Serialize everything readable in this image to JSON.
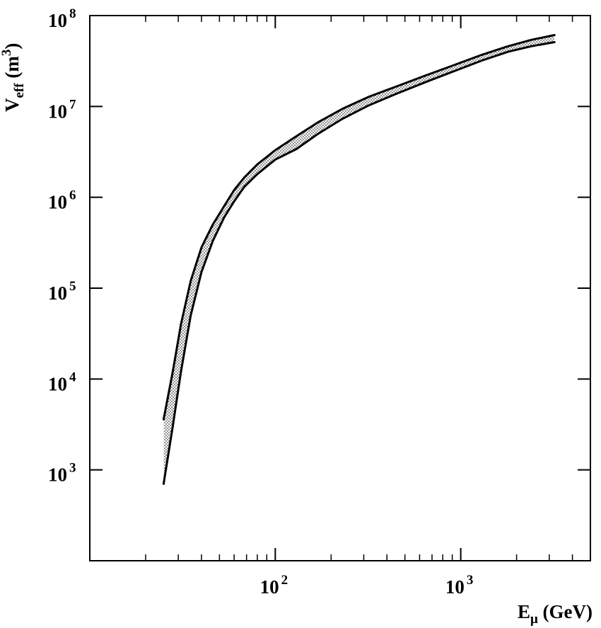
{
  "chart_data": {
    "type": "area",
    "title": "",
    "xlabel": {
      "base": "E",
      "sub": "μ",
      "rest": " (GeV)"
    },
    "ylabel": {
      "base": "V",
      "sub": "eff",
      "rest": " (m",
      "sup": "3",
      "close": ")"
    },
    "xscale": "log",
    "yscale": "log",
    "xlim": [
      10,
      5000
    ],
    "ylim": [
      100,
      100000000
    ],
    "grid": false,
    "legend": "none",
    "xticks_major": [
      {
        "value": 100,
        "base": "10",
        "exp": "2"
      },
      {
        "value": 1000,
        "base": "10",
        "exp": "3"
      }
    ],
    "yticks_major": [
      {
        "value": 1000,
        "base": "10",
        "exp": "3"
      },
      {
        "value": 10000,
        "base": "10",
        "exp": "4"
      },
      {
        "value": 100000,
        "base": "10",
        "exp": "5"
      },
      {
        "value": 1000000,
        "base": "10",
        "exp": "6"
      },
      {
        "value": 10000000,
        "base": "10",
        "exp": "7"
      },
      {
        "value": 100000000,
        "base": "10",
        "exp": "8"
      }
    ],
    "band_fill": "dotted",
    "series": [
      {
        "role": "upper",
        "x": [
          25,
          28,
          31,
          35,
          40,
          46,
          53,
          60,
          68,
          80,
          100,
          130,
          170,
          230,
          320,
          450,
          650,
          900,
          1300,
          1800,
          2400,
          3200
        ],
        "y": [
          3600,
          12000,
          40000,
          120000,
          280000,
          500000,
          800000,
          1200000,
          1650000,
          2300000,
          3300000,
          4700000,
          6700000,
          9400000,
          12800000,
          16600000,
          22000000,
          28000000,
          37000000,
          46000000,
          54000000,
          61000000
        ]
      },
      {
        "role": "lower",
        "x": [
          25,
          28,
          31,
          35,
          40,
          46,
          53,
          60,
          68,
          80,
          100,
          130,
          170,
          230,
          320,
          450,
          650,
          900,
          1300,
          1800,
          2400,
          3200
        ],
        "y": [
          700,
          3000,
          12000,
          50000,
          150000,
          330000,
          600000,
          900000,
          1300000,
          1800000,
          2600000,
          3400000,
          5000000,
          7300000,
          10300000,
          13800000,
          18600000,
          24000000,
          32000000,
          40000000,
          46000000,
          51000000
        ]
      }
    ]
  }
}
